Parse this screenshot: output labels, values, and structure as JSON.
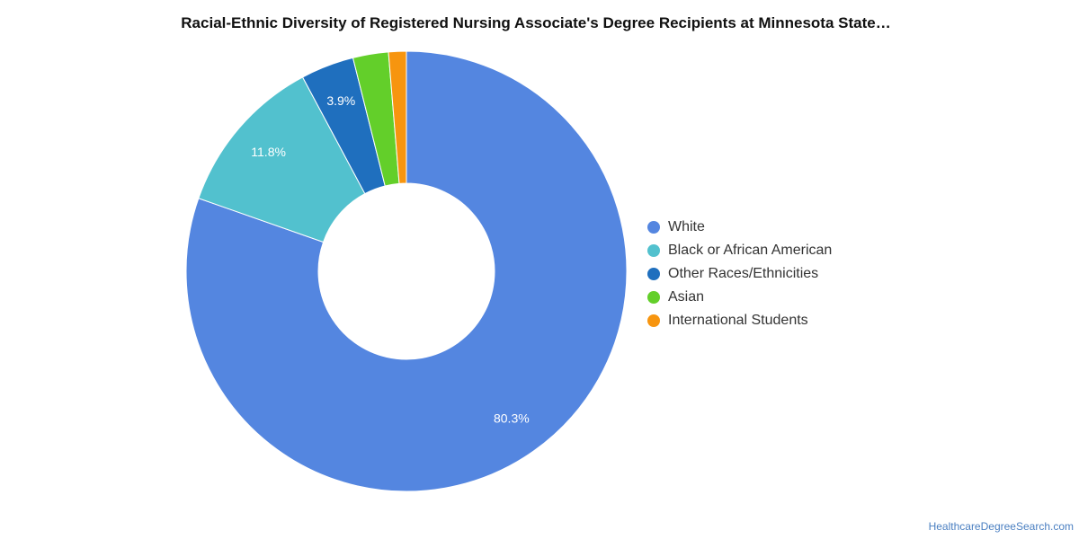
{
  "chart_data": {
    "type": "pie",
    "title": "Racial-Ethnic Diversity of Registered Nursing Associate's Degree Recipients at Minnesota State…",
    "categories": [
      "White",
      "Black or African American",
      "Other Races/Ethnicities",
      "Asian",
      "International Students"
    ],
    "values": [
      80.3,
      11.8,
      3.9,
      2.6,
      1.3
    ],
    "data_labels": [
      "80.3%",
      "11.8%",
      "3.9%",
      "",
      ""
    ],
    "colors": [
      "#5486e0",
      "#52c1ce",
      "#1f6fbe",
      "#63cf2a",
      "#f7950f"
    ],
    "donut": true,
    "legend_position": "right"
  },
  "source": "HealthcareDegreeSearch.com"
}
